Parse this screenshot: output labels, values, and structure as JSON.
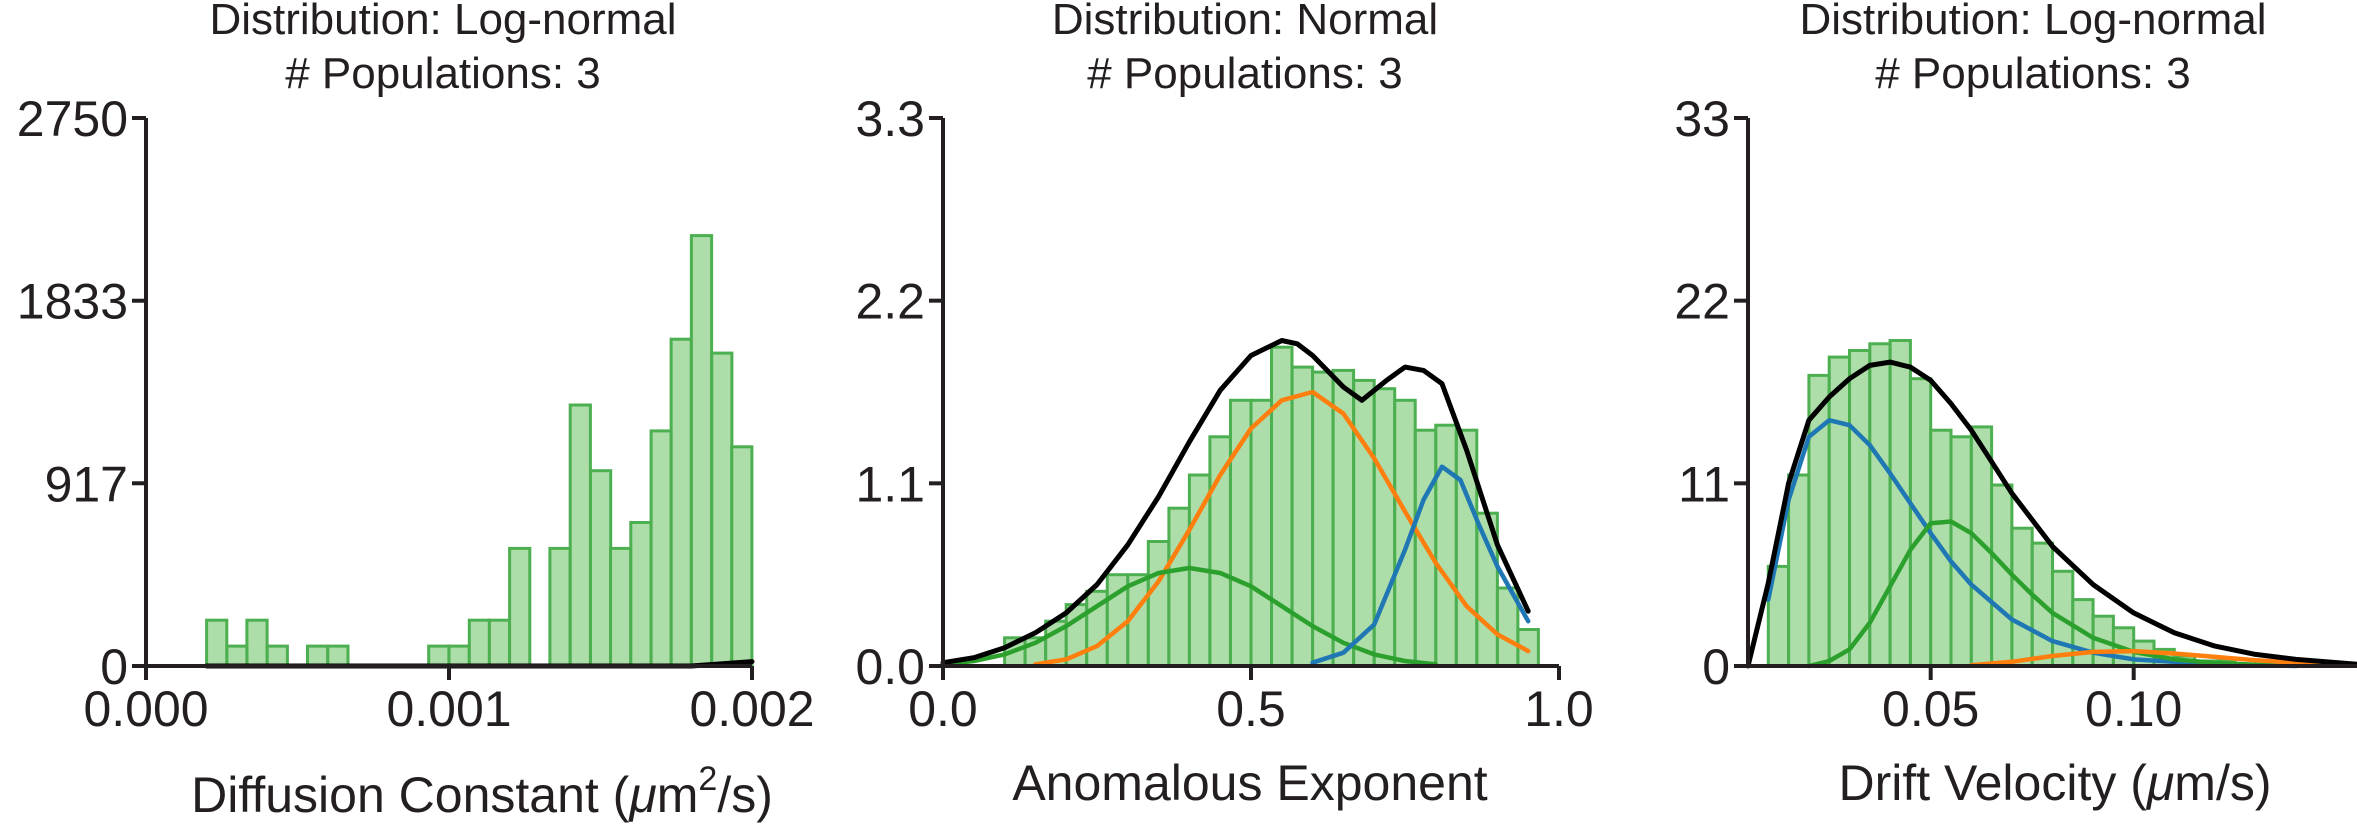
{
  "chart_data": [
    {
      "type": "bar",
      "title_lines": [
        "Distribution: Log-normal",
        "# Populations: 3"
      ],
      "xlabel_main": "Diffusion Constant (",
      "xlabel_mu": "μ",
      "xlabel_m": "m",
      "xlabel_sup": "2",
      "xlabel_tail": "/s)",
      "xlim": [
        0.0,
        0.002
      ],
      "ylim": [
        0,
        2750
      ],
      "xticks": [
        "0.000",
        "0.001",
        "0.002"
      ],
      "xtick_values": [
        0.0,
        0.001,
        0.002
      ],
      "yticks": [
        "0",
        "917",
        "1833",
        "2750"
      ],
      "ytick_values": [
        0,
        917,
        1833,
        2750
      ],
      "bin_width": 6.67e-05,
      "bin_starts": [
        0.0002,
        0.000267,
        0.000333,
        0.0004,
        0.000533,
        0.0006,
        0.000933,
        0.001,
        0.001067,
        0.001133,
        0.0012,
        0.001333,
        0.0014,
        0.001467,
        0.001533,
        0.0016,
        0.001667,
        0.001733,
        0.0018,
        0.001867,
        0.001933
      ],
      "bar_values": [
        230,
        100,
        230,
        100,
        100,
        100,
        100,
        100,
        230,
        230,
        590,
        590,
        1310,
        980,
        590,
        720,
        1180,
        1640,
        2160,
        1570,
        1100
      ],
      "fit_curves": [
        {
          "color": "#000000",
          "x": [
            0.0002,
            0.0018,
            0.002
          ],
          "y": [
            0,
            0,
            22
          ]
        }
      ]
    },
    {
      "type": "bar",
      "title_lines": [
        "Distribution: Normal",
        "# Populations: 3"
      ],
      "xlabel": "Anomalous Exponent",
      "xlim": [
        0.0,
        1.0
      ],
      "ylim": [
        0,
        3.3
      ],
      "xticks": [
        "0.0",
        "0.5",
        "1.0"
      ],
      "xtick_values": [
        0.0,
        0.5,
        1.0
      ],
      "yticks": [
        "0.0",
        "1.1",
        "2.2",
        "3.3"
      ],
      "ytick_values": [
        0.0,
        1.1,
        2.2,
        3.3
      ],
      "bin_width": 0.0333,
      "bin_starts": [
        0.1,
        0.1333,
        0.1667,
        0.2,
        0.2333,
        0.2667,
        0.3,
        0.3333,
        0.3667,
        0.4,
        0.4333,
        0.4667,
        0.5,
        0.5333,
        0.5667,
        0.6,
        0.6333,
        0.6667,
        0.7,
        0.7333,
        0.7667,
        0.8,
        0.8333,
        0.8667,
        0.9,
        0.9333
      ],
      "bar_values": [
        0.17,
        0.17,
        0.27,
        0.37,
        0.45,
        0.55,
        0.55,
        0.75,
        0.95,
        1.15,
        1.38,
        1.6,
        1.6,
        1.92,
        1.8,
        1.77,
        1.78,
        1.72,
        1.67,
        1.6,
        1.42,
        1.45,
        1.42,
        0.92,
        0.47,
        0.22
      ],
      "fit_curves": [
        {
          "color": "#ff7f0e",
          "x": [
            0.15,
            0.2,
            0.25,
            0.3,
            0.35,
            0.4,
            0.45,
            0.5,
            0.55,
            0.6,
            0.65,
            0.7,
            0.75,
            0.8,
            0.85,
            0.9,
            0.95
          ],
          "y": [
            0.01,
            0.04,
            0.12,
            0.27,
            0.51,
            0.82,
            1.15,
            1.43,
            1.6,
            1.65,
            1.52,
            1.25,
            0.93,
            0.62,
            0.36,
            0.19,
            0.09
          ]
        },
        {
          "color": "#2ca02c",
          "x": [
            0.0,
            0.05,
            0.1,
            0.15,
            0.2,
            0.25,
            0.3,
            0.35,
            0.4,
            0.45,
            0.5,
            0.55,
            0.6,
            0.65,
            0.7,
            0.75,
            0.8
          ],
          "y": [
            0.01,
            0.03,
            0.07,
            0.14,
            0.24,
            0.36,
            0.48,
            0.56,
            0.59,
            0.56,
            0.48,
            0.36,
            0.24,
            0.14,
            0.07,
            0.03,
            0.01
          ]
        },
        {
          "color": "#1f77b4",
          "x": [
            0.6,
            0.65,
            0.7,
            0.75,
            0.78,
            0.81,
            0.84,
            0.87,
            0.9,
            0.95
          ],
          "y": [
            0.02,
            0.08,
            0.25,
            0.7,
            1.0,
            1.2,
            1.12,
            0.85,
            0.6,
            0.27
          ]
        },
        {
          "color": "#000000",
          "x": [
            0.0,
            0.05,
            0.1,
            0.15,
            0.2,
            0.25,
            0.3,
            0.35,
            0.4,
            0.45,
            0.5,
            0.55,
            0.575,
            0.6,
            0.65,
            0.68,
            0.72,
            0.75,
            0.78,
            0.81,
            0.85,
            0.9,
            0.95
          ],
          "y": [
            0.02,
            0.05,
            0.11,
            0.2,
            0.32,
            0.49,
            0.73,
            1.02,
            1.35,
            1.66,
            1.87,
            1.96,
            1.94,
            1.87,
            1.68,
            1.6,
            1.72,
            1.8,
            1.78,
            1.7,
            1.3,
            0.73,
            0.33
          ]
        }
      ]
    },
    {
      "type": "bar",
      "title_lines": [
        "Distribution: Log-normal",
        "# Populations: 3"
      ],
      "xlabel_main": "Drift Velocity (",
      "xlabel_mu": "μ",
      "xlabel_tail": "m/s)",
      "xlim": [
        0.005,
        0.155
      ],
      "ylim": [
        0,
        33
      ],
      "xticks": [
        "0.05",
        "0.10"
      ],
      "xtick_values": [
        0.05,
        0.1
      ],
      "yticks": [
        "0",
        "11",
        "22",
        "33"
      ],
      "ytick_values": [
        0,
        11,
        22,
        33
      ],
      "bin_width": 0.005,
      "bin_starts": [
        0.01,
        0.015,
        0.02,
        0.025,
        0.03,
        0.035,
        0.04,
        0.045,
        0.05,
        0.055,
        0.06,
        0.065,
        0.07,
        0.075,
        0.08,
        0.085,
        0.09,
        0.095,
        0.1,
        0.105,
        0.11,
        0.115,
        0.12
      ],
      "bar_values": [
        6,
        11.5,
        17.5,
        18.6,
        19.0,
        19.4,
        19.6,
        17.3,
        14.2,
        13.8,
        14.4,
        10.9,
        8.3,
        7.4,
        5.7,
        4.0,
        3.0,
        2.3,
        1.5,
        1.0,
        0.6,
        0.3,
        0.3
      ],
      "fit_curves": [
        {
          "color": "#1f77b4",
          "x": [
            0.01,
            0.015,
            0.02,
            0.025,
            0.03,
            0.035,
            0.04,
            0.045,
            0.05,
            0.055,
            0.06,
            0.07,
            0.08,
            0.09,
            0.1,
            0.12,
            0.14
          ],
          "y": [
            4.0,
            10.0,
            13.8,
            14.8,
            14.5,
            13.3,
            11.6,
            9.8,
            8.0,
            6.3,
            4.9,
            2.8,
            1.5,
            0.8,
            0.4,
            0.1,
            0.0
          ]
        },
        {
          "color": "#2ca02c",
          "x": [
            0.02,
            0.025,
            0.03,
            0.035,
            0.04,
            0.045,
            0.05,
            0.055,
            0.06,
            0.065,
            0.07,
            0.075,
            0.08,
            0.09,
            0.1,
            0.11,
            0.12,
            0.13,
            0.14
          ],
          "y": [
            0.0,
            0.3,
            1.0,
            2.6,
            4.8,
            7.0,
            8.6,
            8.7,
            8.0,
            6.8,
            5.5,
            4.3,
            3.2,
            1.7,
            0.85,
            0.4,
            0.18,
            0.08,
            0.03
          ]
        },
        {
          "color": "#ff7f0e",
          "x": [
            0.06,
            0.07,
            0.08,
            0.09,
            0.1,
            0.11,
            0.12,
            0.13,
            0.14,
            0.155
          ],
          "y": [
            0.05,
            0.25,
            0.6,
            0.85,
            0.9,
            0.75,
            0.55,
            0.35,
            0.2,
            0.08
          ]
        },
        {
          "color": "#000000",
          "x": [
            0.005,
            0.01,
            0.015,
            0.02,
            0.025,
            0.03,
            0.035,
            0.04,
            0.045,
            0.05,
            0.055,
            0.06,
            0.065,
            0.07,
            0.08,
            0.09,
            0.1,
            0.11,
            0.12,
            0.13,
            0.14,
            0.155
          ],
          "y": [
            0.0,
            5.0,
            11.0,
            14.8,
            16.2,
            17.3,
            18.1,
            18.3,
            18.0,
            17.2,
            15.8,
            14.2,
            12.3,
            10.4,
            7.2,
            4.9,
            3.2,
            2.0,
            1.2,
            0.7,
            0.4,
            0.1
          ]
        }
      ]
    }
  ]
}
